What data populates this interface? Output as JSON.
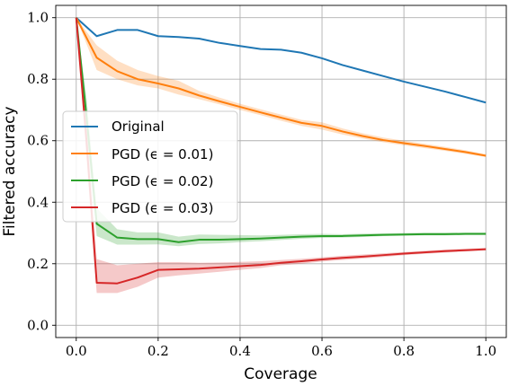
{
  "chart_data": {
    "type": "line",
    "title": "",
    "xlabel": "Coverage",
    "ylabel": "Filtered accuracy",
    "xlim": [
      -0.05,
      1.05
    ],
    "ylim": [
      -0.04,
      1.04
    ],
    "xticks": [
      0.0,
      0.2,
      0.4,
      0.6,
      0.8,
      1.0
    ],
    "xtick_labels": [
      "0.0",
      "0.2",
      "0.4",
      "0.6",
      "0.8",
      "1.0"
    ],
    "yticks": [
      0.0,
      0.2,
      0.4,
      0.6,
      0.8,
      1.0
    ],
    "ytick_labels": [
      "0.0",
      "0.2",
      "0.4",
      "0.6",
      "0.8",
      "1.0"
    ],
    "grid": true,
    "legend_position": "center-left",
    "series": [
      {
        "name": "Original",
        "color": "#1f77b4",
        "x": [
          0.0,
          0.05,
          0.1,
          0.15,
          0.2,
          0.25,
          0.3,
          0.35,
          0.4,
          0.45,
          0.5,
          0.55,
          0.6,
          0.65,
          0.7,
          0.75,
          0.8,
          0.85,
          0.9,
          0.95,
          1.0
        ],
        "y": [
          1.0,
          0.94,
          0.96,
          0.96,
          0.94,
          0.937,
          0.932,
          0.918,
          0.908,
          0.898,
          0.896,
          0.886,
          0.868,
          0.846,
          0.828,
          0.81,
          0.792,
          0.776,
          0.76,
          0.742,
          0.724
        ],
        "lower": null,
        "upper": null
      },
      {
        "name": "PGD (ϵ = 0.01)",
        "color": "#ff7f0e",
        "x": [
          0.0,
          0.05,
          0.1,
          0.15,
          0.2,
          0.25,
          0.3,
          0.35,
          0.4,
          0.45,
          0.5,
          0.55,
          0.6,
          0.65,
          0.7,
          0.75,
          0.8,
          0.85,
          0.9,
          0.95,
          1.0
        ],
        "y": [
          1.0,
          0.87,
          0.826,
          0.8,
          0.786,
          0.77,
          0.747,
          0.728,
          0.71,
          0.692,
          0.675,
          0.658,
          0.648,
          0.63,
          0.615,
          0.602,
          0.592,
          0.583,
          0.573,
          0.563,
          0.551
        ],
        "lower": [
          1.0,
          0.83,
          0.8,
          0.78,
          0.77,
          0.75,
          0.735,
          0.718,
          0.7,
          0.683,
          0.665,
          0.648,
          0.636,
          0.62,
          0.607,
          0.595,
          0.585,
          0.576,
          0.567,
          0.557,
          0.547
        ],
        "upper": [
          1.0,
          0.91,
          0.86,
          0.83,
          0.81,
          0.795,
          0.762,
          0.74,
          0.72,
          0.702,
          0.685,
          0.668,
          0.66,
          0.64,
          0.624,
          0.61,
          0.6,
          0.59,
          0.58,
          0.569,
          0.556
        ]
      },
      {
        "name": "PGD (ϵ = 0.02)",
        "color": "#2ca02c",
        "x": [
          0.0,
          0.025,
          0.05,
          0.1,
          0.15,
          0.2,
          0.25,
          0.3,
          0.35,
          0.4,
          0.45,
          0.5,
          0.55,
          0.6,
          0.65,
          0.7,
          0.75,
          0.8,
          0.85,
          0.9,
          0.95,
          1.0
        ],
        "y": [
          1.0,
          0.68,
          0.33,
          0.285,
          0.28,
          0.28,
          0.27,
          0.278,
          0.278,
          0.28,
          0.282,
          0.285,
          0.288,
          0.29,
          0.29,
          0.292,
          0.294,
          0.295,
          0.296,
          0.296,
          0.297,
          0.297
        ],
        "lower": [
          1.0,
          0.62,
          0.29,
          0.262,
          0.262,
          0.263,
          0.257,
          0.264,
          0.266,
          0.27,
          0.273,
          0.277,
          0.281,
          0.284,
          0.285,
          0.287,
          0.29,
          0.291,
          0.292,
          0.292,
          0.293,
          0.293
        ],
        "upper": [
          1.0,
          0.74,
          0.38,
          0.312,
          0.302,
          0.302,
          0.288,
          0.295,
          0.294,
          0.293,
          0.292,
          0.294,
          0.296,
          0.297,
          0.296,
          0.298,
          0.299,
          0.3,
          0.301,
          0.301,
          0.301,
          0.301
        ]
      },
      {
        "name": "PGD (ϵ = 0.03)",
        "color": "#d62728",
        "x": [
          0.0,
          0.025,
          0.05,
          0.1,
          0.15,
          0.2,
          0.25,
          0.3,
          0.35,
          0.4,
          0.45,
          0.5,
          0.55,
          0.6,
          0.65,
          0.7,
          0.75,
          0.8,
          0.85,
          0.9,
          0.95,
          1.0
        ],
        "y": [
          1.0,
          0.6,
          0.138,
          0.136,
          0.155,
          0.18,
          0.182,
          0.184,
          0.188,
          0.192,
          0.196,
          0.203,
          0.208,
          0.214,
          0.219,
          0.223,
          0.228,
          0.233,
          0.237,
          0.241,
          0.244,
          0.247
        ],
        "lower": [
          1.0,
          0.54,
          0.105,
          0.105,
          0.125,
          0.155,
          0.162,
          0.168,
          0.174,
          0.18,
          0.186,
          0.195,
          0.2,
          0.207,
          0.212,
          0.217,
          0.222,
          0.228,
          0.232,
          0.236,
          0.24,
          0.243
        ],
        "upper": [
          1.0,
          0.66,
          0.215,
          0.195,
          0.2,
          0.205,
          0.205,
          0.203,
          0.204,
          0.206,
          0.208,
          0.212,
          0.216,
          0.221,
          0.226,
          0.23,
          0.234,
          0.238,
          0.242,
          0.246,
          0.249,
          0.251
        ]
      }
    ]
  }
}
